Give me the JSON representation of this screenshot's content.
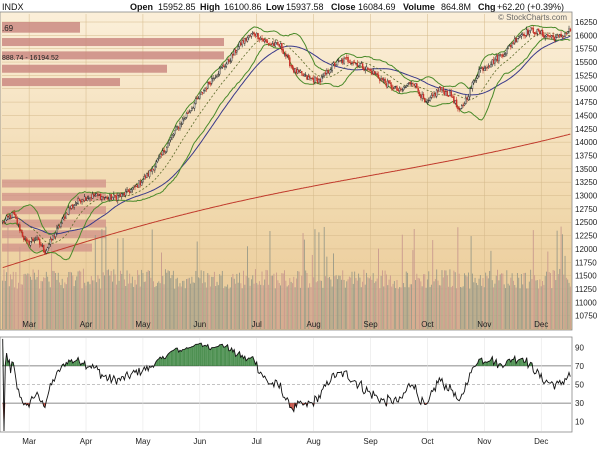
{
  "chart_data": [
    {
      "type": "candlestick",
      "symbol_label": "INDX",
      "header": {
        "open_label": "Open",
        "open": "15952.85",
        "high_label": "High",
        "high": "16100.86",
        "low_label": "Low",
        "low": "15937.58",
        "close_label": "Close",
        "close": "16084.69",
        "volume_label": "Volume",
        "volume": "864.8M",
        "chg_label": "Chg",
        "chg": "+62.20 (+0.39%)"
      },
      "watermark": "© StockCharts.com",
      "fragment_left": ".69",
      "bar_label": "888.74 - 16194.52",
      "month_labels": [
        "Mar",
        "Apr",
        "May",
        "Jun",
        "Jul",
        "Aug",
        "Sep",
        "Oct",
        "Nov",
        "Dec"
      ],
      "month_positions_in_bars": [
        20,
        63,
        106,
        149,
        192,
        235,
        278,
        321,
        364,
        407
      ],
      "y_ticks": [
        10750,
        11000,
        11250,
        11500,
        11750,
        12000,
        12250,
        12500,
        12750,
        13000,
        13250,
        13500,
        13750,
        14000,
        14250,
        14500,
        14750,
        15000,
        15250,
        15500,
        15750,
        16000,
        16250
      ],
      "ylim": [
        10500,
        16400
      ],
      "price_anchors": [
        [
          0,
          12500
        ],
        [
          8,
          12650
        ],
        [
          18,
          12100
        ],
        [
          25,
          12200
        ],
        [
          32,
          11950
        ],
        [
          40,
          12300
        ],
        [
          50,
          12750
        ],
        [
          60,
          12950
        ],
        [
          70,
          13000
        ],
        [
          80,
          12950
        ],
        [
          90,
          13000
        ],
        [
          100,
          13150
        ],
        [
          110,
          13400
        ],
        [
          120,
          13750
        ],
        [
          130,
          14200
        ],
        [
          140,
          14550
        ],
        [
          150,
          14900
        ],
        [
          160,
          15250
        ],
        [
          170,
          15500
        ],
        [
          180,
          15850
        ],
        [
          190,
          16050
        ],
        [
          200,
          15850
        ],
        [
          210,
          15800
        ],
        [
          220,
          15350
        ],
        [
          230,
          15200
        ],
        [
          240,
          15150
        ],
        [
          250,
          15450
        ],
        [
          260,
          15550
        ],
        [
          270,
          15450
        ],
        [
          280,
          15300
        ],
        [
          290,
          15100
        ],
        [
          300,
          14950
        ],
        [
          310,
          15150
        ],
        [
          320,
          14700
        ],
        [
          330,
          15000
        ],
        [
          340,
          14850
        ],
        [
          345,
          14550
        ],
        [
          350,
          14800
        ],
        [
          360,
          15350
        ],
        [
          370,
          15500
        ],
        [
          380,
          15700
        ],
        [
          390,
          16000
        ],
        [
          400,
          16100
        ],
        [
          410,
          16000
        ],
        [
          420,
          15950
        ],
        [
          428,
          16084.69
        ]
      ],
      "volume_max_M": 2000,
      "volume_series": "generated per-bar around ~900M",
      "overlays": [
        {
          "name": "Bollinger Bands (20,2)",
          "color": "#4a8a2a"
        },
        {
          "name": "MA 20",
          "color": "#5c6a2a",
          "style": "dotted"
        },
        {
          "name": "MA 50",
          "color": "#3a3a8a"
        },
        {
          "name": "MA 200",
          "color": "#c0392b"
        }
      ],
      "volume_by_price": {
        "top_zone_color": "#c8837d",
        "bottom_zone_color": "#d09088",
        "top_bars": [
          {
            "upper": 16250,
            "lower": 16050
          },
          {
            "upper": 15950,
            "lower": 15800
          },
          {
            "upper": 15700,
            "lower": 15550
          },
          {
            "upper": 15450,
            "lower": 15300
          },
          {
            "upper": 15200,
            "lower": 15050
          }
        ],
        "bottom_bars": [
          {
            "upper": 13300,
            "lower": 13150
          },
          {
            "upper": 13050,
            "lower": 12900
          },
          {
            "upper": 12800,
            "lower": 12650
          },
          {
            "upper": 12550,
            "lower": 12400
          },
          {
            "upper": 12350,
            "lower": 12200
          },
          {
            "upper": 12100,
            "lower": 11950
          }
        ]
      }
    },
    {
      "type": "line",
      "title": "",
      "y_ticks": [
        10,
        30,
        50,
        70,
        90
      ],
      "ylim": [
        0,
        100
      ],
      "reference_lines": [
        70,
        30
      ],
      "midline": 50,
      "line_color": "#111111",
      "overbought_fill_color": "#2e7d32",
      "oversold_fill_color": "#c0392b"
    }
  ]
}
